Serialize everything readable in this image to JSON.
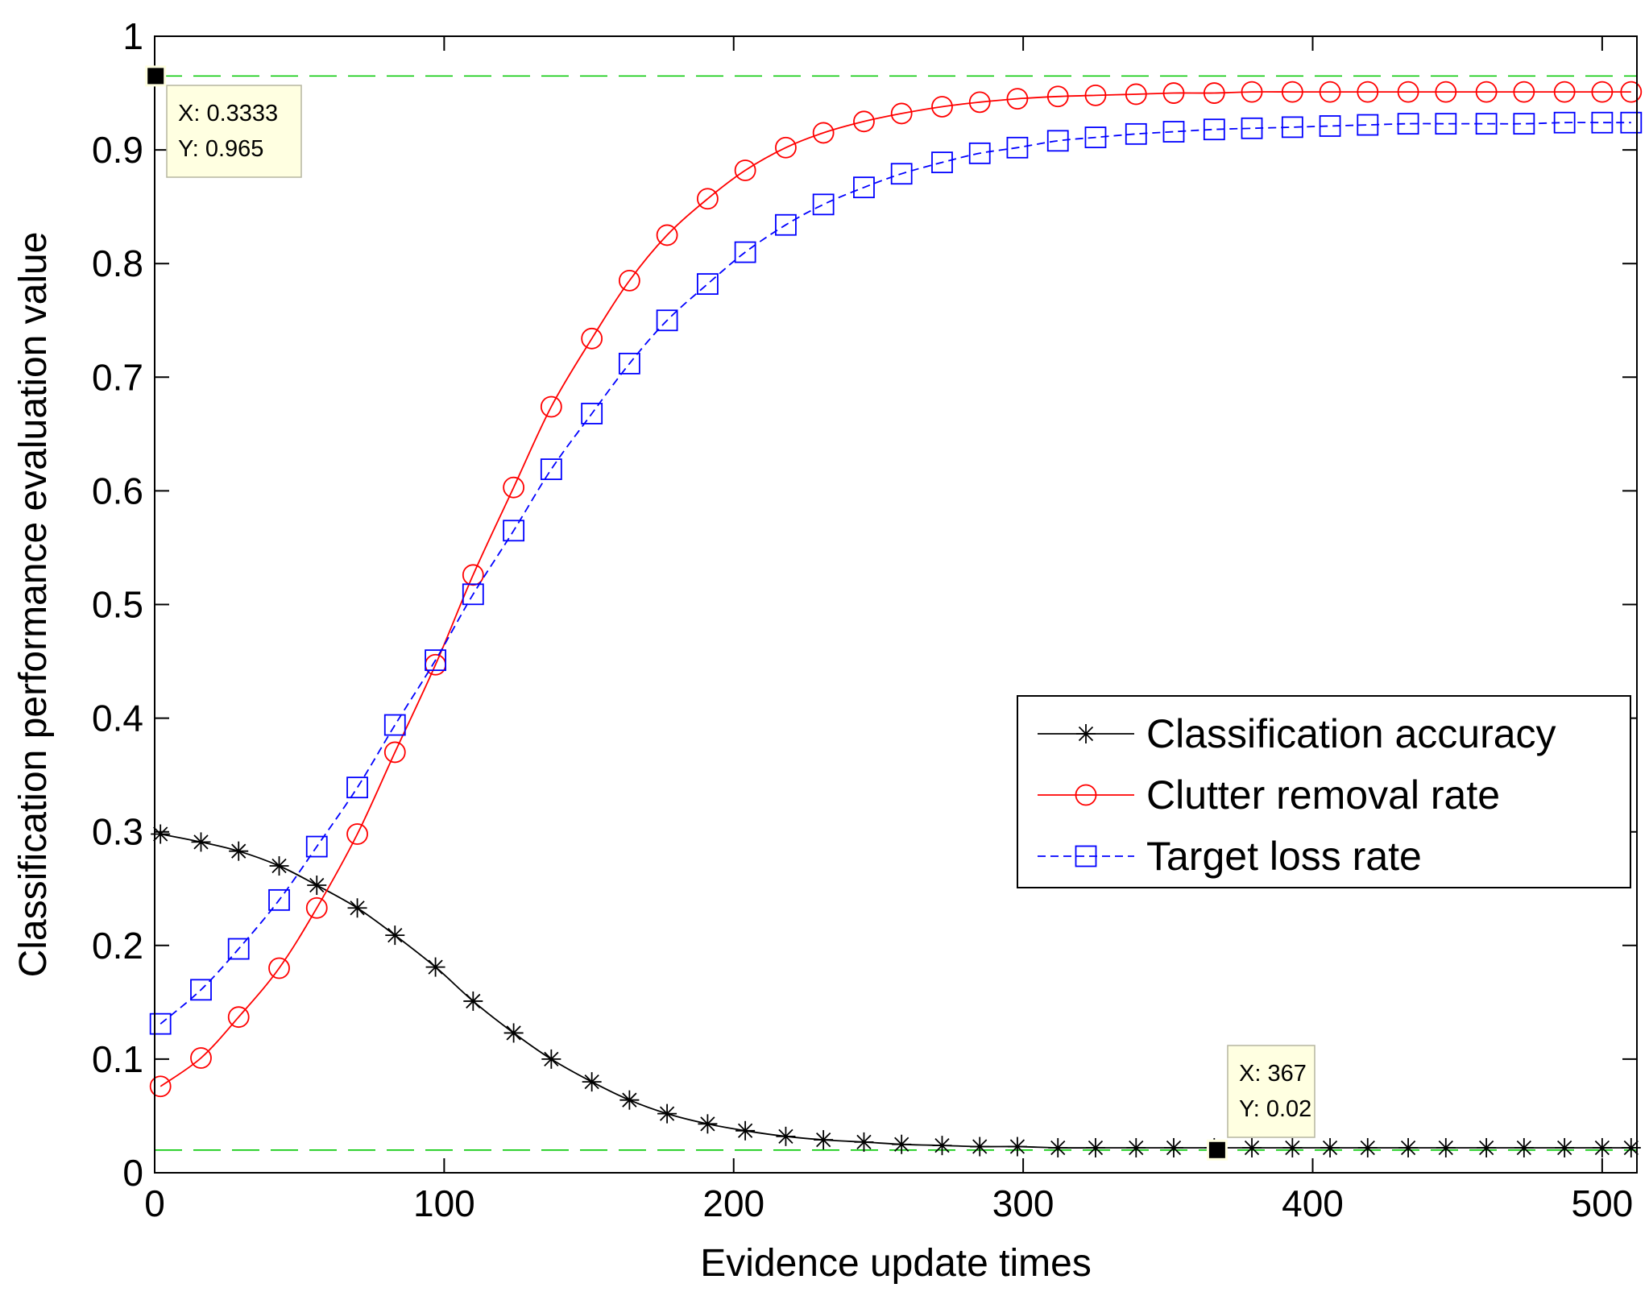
{
  "chart_data": {
    "type": "line",
    "title": "",
    "xlabel": "Evidence update times",
    "ylabel": "Classification performance evaluation value",
    "xlim": [
      0,
      512
    ],
    "ylim": [
      0,
      1
    ],
    "xticks": [
      0,
      100,
      200,
      300,
      400,
      500
    ],
    "yticks": [
      0,
      0.1,
      0.2,
      0.3,
      0.4,
      0.5,
      0.6,
      0.7,
      0.8,
      0.9,
      1
    ],
    "xtick_labels": [
      "0",
      "100",
      "200",
      "300",
      "400",
      "500"
    ],
    "ytick_labels": [
      "0",
      "0.1",
      "0.2",
      "0.3",
      "0.4",
      "0.5",
      "0.6",
      "0.7",
      "0.8",
      "0.9",
      "1"
    ],
    "grid": false,
    "legend_position": "right",
    "x": [
      2,
      16,
      29,
      43,
      56,
      70,
      83,
      97,
      110,
      124,
      137,
      151,
      164,
      177,
      191,
      204,
      218,
      231,
      245,
      258,
      272,
      285,
      298,
      312,
      325,
      339,
      352,
      366,
      379,
      393,
      406,
      419,
      433,
      446,
      460,
      473,
      487,
      500,
      510
    ],
    "series": [
      {
        "name": "Classification accuracy",
        "color": "#000000",
        "line_style": "solid",
        "marker": "asterisk",
        "values": [
          0.298,
          0.291,
          0.283,
          0.27,
          0.253,
          0.233,
          0.209,
          0.181,
          0.151,
          0.123,
          0.1,
          0.08,
          0.064,
          0.052,
          0.043,
          0.037,
          0.032,
          0.029,
          0.027,
          0.025,
          0.024,
          0.023,
          0.023,
          0.022,
          0.022,
          0.022,
          0.022,
          0.022,
          0.022,
          0.022,
          0.022,
          0.022,
          0.022,
          0.022,
          0.022,
          0.022,
          0.022,
          0.022,
          0.022
        ]
      },
      {
        "name": "Clutter removal rate",
        "color": "#ff0000",
        "line_style": "solid",
        "marker": "circle",
        "values": [
          0.076,
          0.101,
          0.137,
          0.18,
          0.233,
          0.298,
          0.37,
          0.447,
          0.526,
          0.603,
          0.674,
          0.734,
          0.785,
          0.825,
          0.857,
          0.882,
          0.902,
          0.915,
          0.925,
          0.932,
          0.938,
          0.942,
          0.945,
          0.947,
          0.948,
          0.949,
          0.95,
          0.95,
          0.951,
          0.951,
          0.951,
          0.951,
          0.951,
          0.951,
          0.951,
          0.951,
          0.951,
          0.951,
          0.951
        ]
      },
      {
        "name": "Target loss rate",
        "color": "#0000ff",
        "line_style": "dashed",
        "marker": "square",
        "values": [
          0.131,
          0.161,
          0.197,
          0.24,
          0.287,
          0.339,
          0.394,
          0.451,
          0.509,
          0.565,
          0.619,
          0.668,
          0.712,
          0.75,
          0.782,
          0.81,
          0.834,
          0.852,
          0.867,
          0.879,
          0.889,
          0.897,
          0.902,
          0.908,
          0.911,
          0.914,
          0.916,
          0.918,
          0.919,
          0.92,
          0.921,
          0.922,
          0.923,
          0.923,
          0.923,
          0.923,
          0.924,
          0.924,
          0.924
        ]
      }
    ],
    "reference_lines": [
      {
        "name": "upper-reference",
        "y": 0.965,
        "color": "#00c800",
        "style": "dashed"
      },
      {
        "name": "lower-reference",
        "y": 0.02,
        "color": "#00c800",
        "style": "dashed"
      }
    ],
    "data_tips": [
      {
        "name": "datatip-upper",
        "x": 0.3333,
        "y": 0.965,
        "line1": "X: 0.3333",
        "line2": "Y: 0.965"
      },
      {
        "name": "datatip-lower",
        "x": 367,
        "y": 0.02,
        "line1": "X: 367",
        "line2": "Y: 0.02"
      }
    ]
  }
}
